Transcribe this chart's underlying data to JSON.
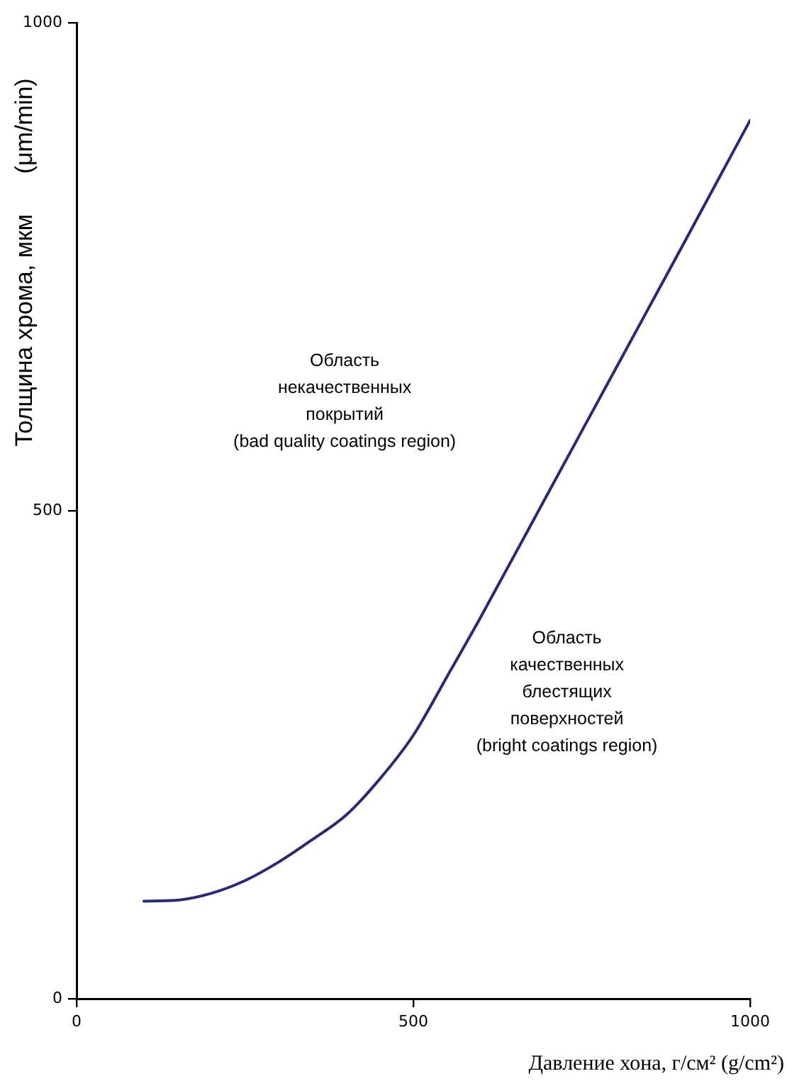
{
  "chart_data": {
    "type": "line",
    "xlabel": "Давление хона, г/см² (g/cm²)",
    "ylabel": "Толщина хрома, мкм      (μm/min)",
    "x": [
      100,
      150,
      200,
      250,
      300,
      350,
      400,
      450,
      500,
      550,
      600,
      700,
      800,
      900,
      1000
    ],
    "series": [
      {
        "color": "#29297a",
        "values": [
          100,
          101,
          108,
          121,
          140,
          163,
          188,
          225,
          270,
          330,
          391,
          518,
          645,
          772,
          900
        ]
      }
    ],
    "xlim": [
      0,
      1000
    ],
    "ylim": [
      0,
      1000
    ],
    "xticks": [
      0,
      500,
      1000
    ],
    "yticks": [
      0,
      500,
      1000
    ],
    "annotations": [
      "Область\nнекачественных\nпокрытий\n(bad quality coatings region)",
      "Область\nкачественных\nблестящих\nповерхностей\n(bright coatings region)"
    ]
  }
}
